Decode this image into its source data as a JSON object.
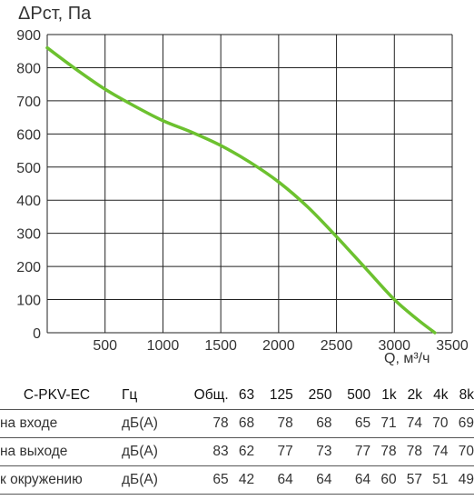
{
  "chart_data": {
    "type": "line",
    "ylabel": "ΔPст, Па",
    "xlabel": "Q, м³/ч",
    "xlim": [
      0,
      3500
    ],
    "ylim": [
      0,
      900
    ],
    "x_ticks": [
      500,
      1000,
      1500,
      2000,
      2500,
      3000,
      3500
    ],
    "y_ticks": [
      0,
      100,
      200,
      300,
      400,
      500,
      600,
      700,
      800,
      900
    ],
    "grid": true,
    "line_color": "#6cc12f",
    "series": [
      {
        "x": [
          0,
          250,
          500,
          750,
          1000,
          1250,
          1500,
          1750,
          2000,
          2250,
          2500,
          2750,
          3000,
          3200,
          3350
        ],
        "y": [
          860,
          795,
          735,
          685,
          640,
          605,
          565,
          515,
          455,
          380,
          290,
          195,
          100,
          40,
          0
        ]
      }
    ]
  },
  "table": {
    "model": "C-PKV-EC",
    "unit_header": "Гц",
    "columns": [
      "Общ.",
      "63",
      "125",
      "250",
      "500",
      "1k",
      "2k",
      "4k",
      "8k"
    ],
    "rows": [
      {
        "label": "на входе",
        "unit": "дБ(А)",
        "values": [
          "78",
          "68",
          "78",
          "68",
          "65",
          "71",
          "74",
          "70",
          "69"
        ]
      },
      {
        "label": "на выходе",
        "unit": "дБ(А)",
        "values": [
          "83",
          "62",
          "77",
          "73",
          "77",
          "78",
          "78",
          "74",
          "70"
        ]
      },
      {
        "label": "к окружению",
        "unit": "дБ(А)",
        "values": [
          "65",
          "42",
          "64",
          "64",
          "64",
          "60",
          "57",
          "51",
          "49"
        ]
      }
    ]
  }
}
